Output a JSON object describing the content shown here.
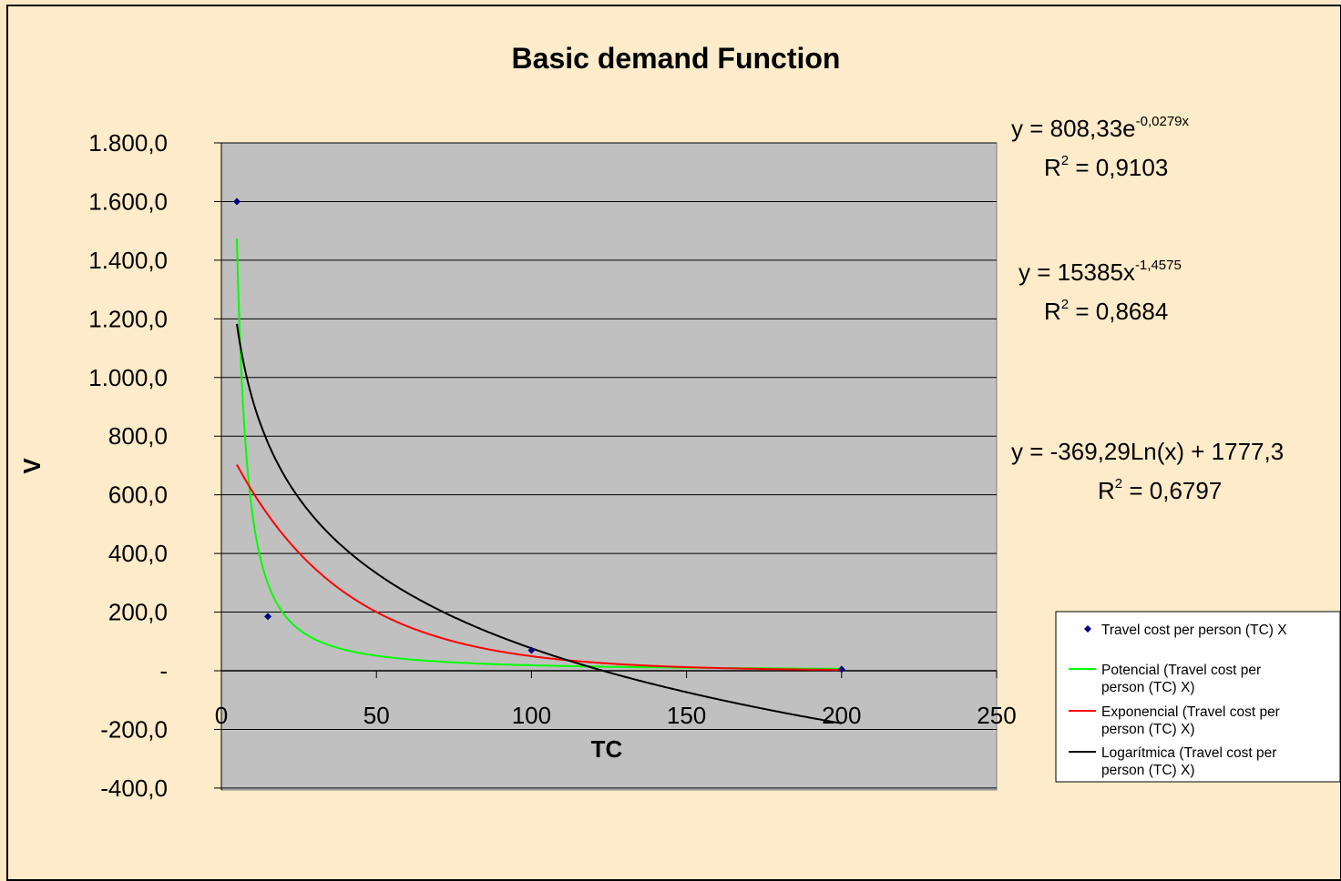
{
  "chart_data": {
    "type": "scatter",
    "title": "Basic demand Function",
    "xlabel": "TC",
    "ylabel": "V",
    "xlim": [
      0,
      250
    ],
    "ylim": [
      -400,
      1800
    ],
    "x_ticks": [
      "0",
      "50",
      "100",
      "150",
      "200",
      "250"
    ],
    "y_ticks": [
      "-400,0",
      "-200,0",
      "-",
      "200,0",
      "400,0",
      "600,0",
      "800,0",
      "1.000,0",
      "1.200,0",
      "1.400,0",
      "1.600,0",
      "1.800,0"
    ],
    "y_tick_values": [
      -400,
      -200,
      0,
      200,
      400,
      600,
      800,
      1000,
      1200,
      1400,
      1600,
      1800
    ],
    "x_tick_values": [
      0,
      50,
      100,
      150,
      200,
      250
    ],
    "grid": true,
    "legend_position": "right",
    "plot_background": "#c0c0c0",
    "series": [
      {
        "name": "Travel cost per person (TC) X",
        "kind": "points",
        "color": "#000080",
        "x": [
          5,
          15,
          100,
          200
        ],
        "y": [
          1600,
          185,
          70,
          5
        ]
      },
      {
        "name": "Potencial (Travel cost per person (TC) X)",
        "kind": "trendline",
        "color": "#00ff00",
        "model": "power",
        "a": 15385,
        "b": -1.4575,
        "x_range": [
          5,
          200
        ]
      },
      {
        "name": "Exponencial (Travel cost per person (TC) X)",
        "kind": "trendline",
        "color": "#ff0000",
        "model": "exponential",
        "a": 808.33,
        "b": -0.0279,
        "x_range": [
          5,
          200
        ]
      },
      {
        "name": "Logarítmica (Travel cost per person (TC) X)",
        "kind": "trendline",
        "color": "#000000",
        "model": "log",
        "a": -369.29,
        "b": 1777.3,
        "x_range": [
          5,
          200
        ]
      }
    ],
    "equations": [
      {
        "main": "y = 808,33e",
        "sup": "-0,0279x",
        "r2_pre": "R",
        "r2_sup": "2",
        "r2_post": " = 0,9103"
      },
      {
        "main": "y = 15385x",
        "sup": "-1,4575",
        "r2_pre": "R",
        "r2_sup": "2",
        "r2_post": " = 0,8684"
      },
      {
        "main": "y = -369,29Ln(x) + 1777,3",
        "sup": "",
        "r2_pre": "R",
        "r2_sup": "2",
        "r2_post": " = 0,6797"
      }
    ],
    "legend": [
      {
        "line1": "Travel cost per person (TC) X",
        "line2": ""
      },
      {
        "line1": "Potencial (Travel cost per",
        "line2": "person (TC) X)"
      },
      {
        "line1": "Exponencial (Travel cost per",
        "line2": "person (TC) X)"
      },
      {
        "line1": "Logarítmica (Travel cost per",
        "line2": "person (TC) X)"
      }
    ]
  }
}
